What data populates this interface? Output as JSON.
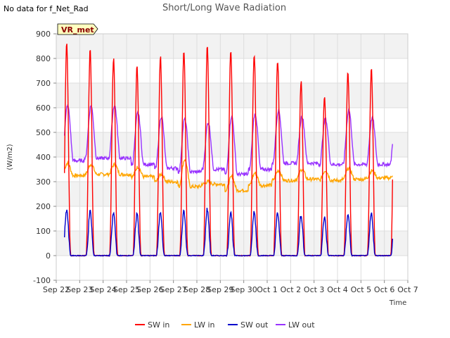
{
  "nodata_text": "No data for f_Net_Rad",
  "chart_data": {
    "type": "line",
    "title": "Short/Long Wave Radiation",
    "xlabel": "Time",
    "ylabel": "(W/m2)",
    "badge": "VR_met",
    "ylim": [
      -100,
      900
    ],
    "yticks": [
      -100,
      0,
      100,
      200,
      300,
      400,
      500,
      600,
      700,
      800,
      900
    ],
    "xlim_days": [
      0,
      15
    ],
    "xtick_labels": [
      "Sep 22",
      "Sep 23",
      "Sep 24",
      "Sep 25",
      "Sep 26",
      "Sep 27",
      "Sep 28",
      "Sep 29",
      "Sep 30",
      "Oct 1",
      "Oct 2",
      "Oct 3",
      "Oct 4",
      "Oct 5",
      "Oct 6",
      "Oct 7"
    ],
    "grid": true,
    "legend_placement": "bottom",
    "data_start_day": 0.35,
    "data_end_day": 14.35,
    "series": [
      {
        "name": "SW in",
        "color": "#ff0000",
        "daily_peaks": [
          860,
          830,
          800,
          765,
          805,
          825,
          850,
          830,
          820,
          795,
          705,
          650,
          750,
          755
        ]
      },
      {
        "name": "LW in",
        "color": "#ffa500",
        "daily_peaks": [
          375,
          370,
          370,
          360,
          330,
          390,
          300,
          320,
          335,
          345,
          350,
          345,
          355,
          345
        ],
        "daily_troughs": [
          325,
          330,
          330,
          320,
          300,
          280,
          290,
          265,
          285,
          305,
          310,
          305,
          310,
          315
        ]
      },
      {
        "name": "SW out",
        "color": "#0000cc",
        "daily_peaks": [
          185,
          178,
          172,
          170,
          178,
          180,
          188,
          178,
          178,
          172,
          165,
          155,
          170,
          170
        ]
      },
      {
        "name": "LW out",
        "color": "#9933ff",
        "daily_peaks": [
          610,
          608,
          610,
          580,
          565,
          555,
          540,
          565,
          575,
          590,
          565,
          555,
          590,
          560
        ],
        "daily_troughs": [
          385,
          395,
          395,
          370,
          355,
          340,
          350,
          330,
          350,
          375,
          375,
          370,
          370,
          370
        ]
      }
    ]
  }
}
